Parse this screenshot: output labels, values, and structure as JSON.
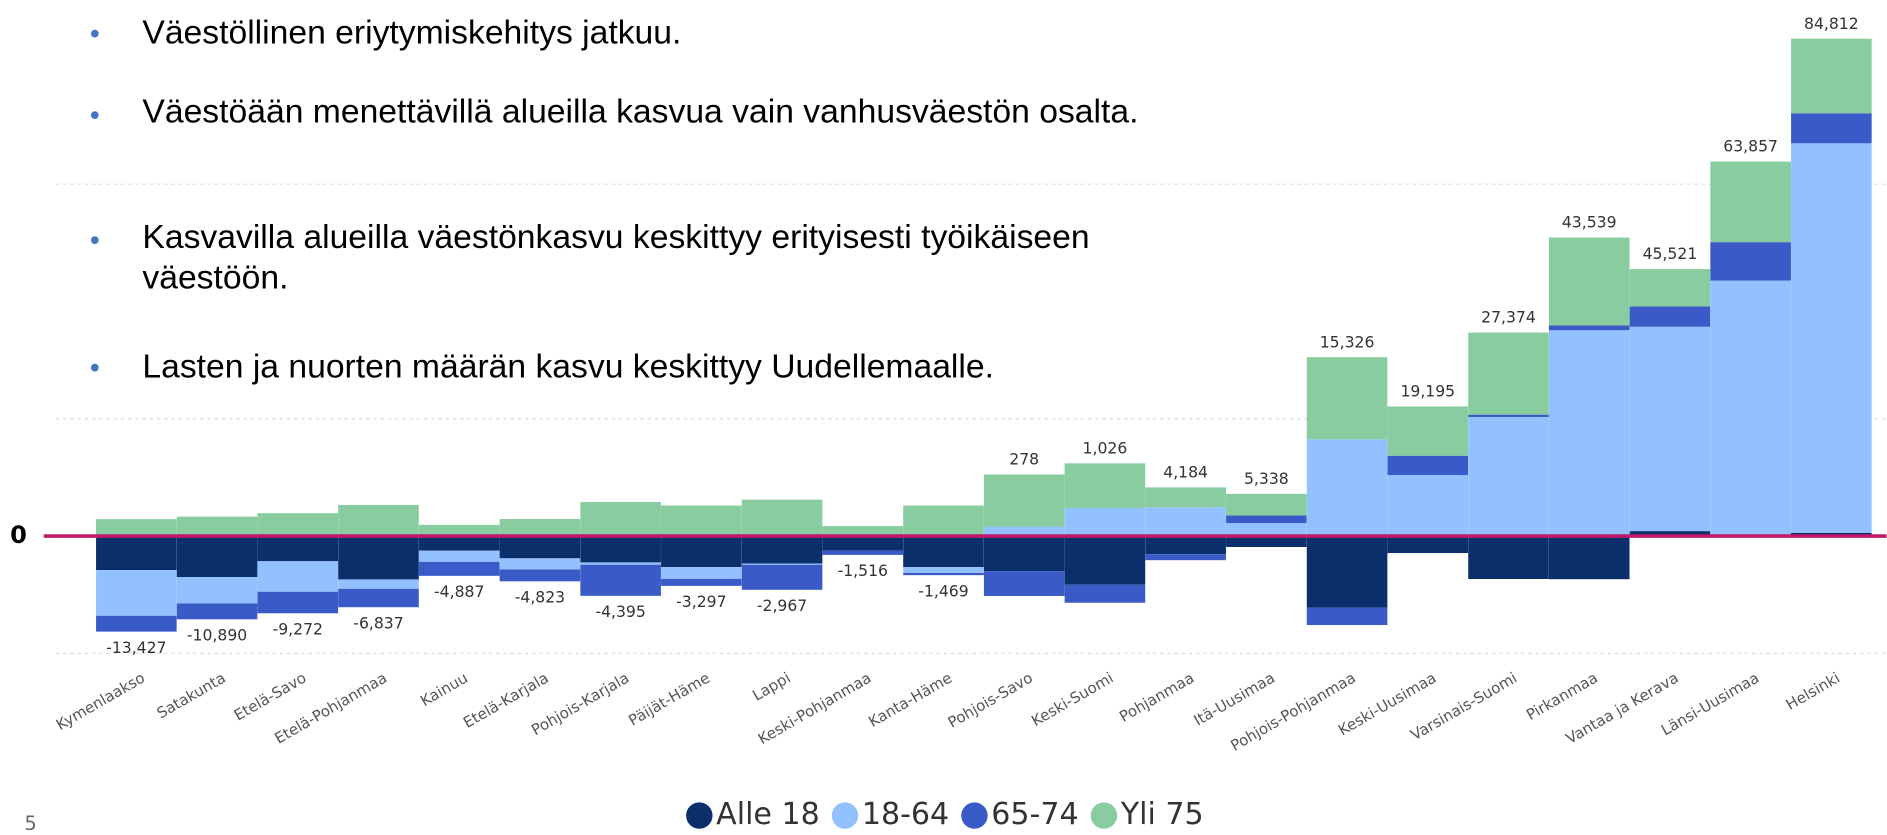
{
  "bullets": [
    "Väestöllinen eriytymiskehitys jatkuu.",
    "Väestöään menettävillä alueilla kasvua vain vanhusväestön osalta.",
    "Kasvavilla alueilla väestönkasvu keskittyy erityisesti työikäiseen väestöön.",
    "Lasten ja nuorten määrän kasvu keskittyy Uudellemaalle."
  ],
  "page_number": "5",
  "chart_data": {
    "type": "stacked_bar",
    "categories": [
      "Kymenlaakso",
      "Satakunta",
      "Etelä-Savo",
      "Etelä-Pohjanmaa",
      "Kainuu",
      "Etelä-Karjala",
      "Pohjois-Karjala",
      "Päijät-Häme",
      "Lappi",
      "Keski-Pohjanmaa",
      "Kanta-Häme",
      "Pohjois-Savo",
      "Keski-Suomi",
      "Pohjanmaa",
      "Itä-Uusimaa",
      "Pohjois-Pohjanmaa",
      "Keski-Uusimaa",
      "Varsinais-Suomi",
      "Pirkanmaa",
      "Vantaa ja Kerava",
      "Länsi-Uusimaa",
      "Helsinki"
    ],
    "series": [
      {
        "name": "Alle 18",
        "color": "#0b2f6a",
        "values": [
          -5800,
          -7000,
          -4300,
          -7400,
          -2500,
          -3800,
          -4500,
          -5300,
          -4700,
          -2500,
          -5300,
          -6000,
          -8300,
          -3100,
          -1862,
          -12200,
          -2905,
          -7326,
          -7361,
          841,
          297,
          552
        ]
      },
      {
        "name": "18-64",
        "color": "#93c0ff",
        "values": [
          -7800,
          -4500,
          -5200,
          -1600,
          -1900,
          -1900,
          -400,
          -2000,
          -200,
          0,
          -1000,
          1600,
          4800,
          4900,
          2200,
          16500,
          10400,
          20300,
          35100,
          34850,
          43260,
          66420
        ]
      },
      {
        "name": "65-74",
        "color": "#3a5bc7",
        "values": [
          -2700,
          -2700,
          -3672,
          -3137,
          -2387,
          -2023,
          -5295,
          -1197,
          -4267,
          -716,
          -369,
          -4222,
          -3074,
          -1016,
          1300,
          -2974,
          3300,
          400,
          800,
          3480,
          6560,
          5130
        ]
      },
      {
        "name": "Yli 75",
        "color": "#88cc9f",
        "values": [
          2873,
          3310,
          3900,
          5300,
          1900,
          2900,
          5800,
          5200,
          6200,
          1700,
          5200,
          8900,
          7600,
          3400,
          3700,
          14000,
          8400,
          14000,
          15000,
          6350,
          13740,
          12710
        ]
      }
    ],
    "totals": [
      -13427,
      -10890,
      -9272,
      -6837,
      -4887,
      -4823,
      -4395,
      -3297,
      -2967,
      -1516,
      -1469,
      278,
      1026,
      4184,
      5338,
      15326,
      19195,
      27374,
      43539,
      45521,
      63857,
      84812
    ],
    "total_labels": [
      "-13,427",
      "-10,890",
      "-9,272",
      "-6,837",
      "-4,887",
      "-4,823",
      "-4,395",
      "-3,297",
      "-2,967",
      "-1,516",
      "-1,469",
      "278",
      "1,026",
      "4,184",
      "5,338",
      "15,326",
      "19,195",
      "27,374",
      "43,539",
      "45,521",
      "63,857",
      "84,812"
    ],
    "ylim": [
      -21000,
      91000
    ],
    "yticks": [
      0
    ],
    "gridlines": [
      -20000,
      20000,
      60000
    ],
    "zero_line_color": "#c2186b",
    "legend": "bottom"
  }
}
